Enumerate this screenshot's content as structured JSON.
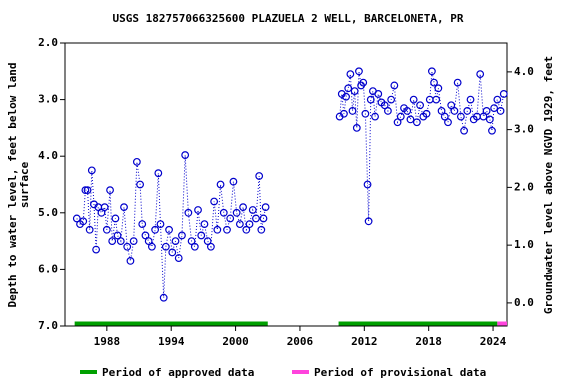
{
  "chart_data": {
    "type": "scatter",
    "title": "USGS 182757066325600 PLAZUELA 2 WELL, BARCELONETA, PR",
    "ylabel": [
      "Depth to water level, feet below land",
      "surface"
    ],
    "y2label": "Groundwater level above NGVD 1929, feet",
    "xlim": [
      1984.1,
      2025.3
    ],
    "xticks": [
      1988,
      1994,
      2000,
      2006,
      2012,
      2018,
      2024
    ],
    "ylim": [
      7.0,
      2.0
    ],
    "yticks": [
      {
        "value": 2,
        "label": "2.0"
      },
      {
        "value": 3,
        "label": "3.0"
      },
      {
        "value": 4,
        "label": "4.0"
      },
      {
        "value": 5,
        "label": "5.0"
      },
      {
        "value": 6,
        "label": "6.0"
      },
      {
        "value": 7,
        "label": "7.0"
      }
    ],
    "y2lim": [
      -0.4,
      4.5
    ],
    "y2ticks": [
      {
        "value": 0,
        "label": "0.0"
      },
      {
        "value": 1,
        "label": "1.0"
      },
      {
        "value": 2,
        "label": "2.0"
      },
      {
        "value": 3,
        "label": "3.0"
      },
      {
        "value": 4,
        "label": "4.0"
      }
    ],
    "series": [
      {
        "color": "#0000cc",
        "x": [
          1985.2,
          1985.5,
          1985.8,
          1986.0,
          1986.2,
          1986.4,
          1986.6,
          1986.8,
          1987.0,
          1987.2,
          1987.5,
          1987.8,
          1988.0,
          1988.3,
          1988.5,
          1988.8,
          1989.0,
          1989.3,
          1989.6,
          1989.9,
          1990.2,
          1990.5,
          1990.8,
          1991.1,
          1991.3,
          1991.6,
          1991.9,
          1992.2,
          1992.5,
          1992.8,
          1993.0,
          1993.3,
          1993.5,
          1993.8,
          1994.1,
          1994.4,
          1994.7,
          1995.0,
          1995.3,
          1995.6,
          1995.9,
          1996.2,
          1996.5,
          1996.8,
          1997.1,
          1997.4,
          1997.7,
          1998.0,
          1998.3,
          1998.6,
          1998.9,
          1999.2,
          1999.5,
          1999.8,
          2000.1,
          2000.4,
          2000.7,
          2001.0,
          2001.3,
          2001.6,
          2001.9,
          2002.2,
          2002.4,
          2002.6,
          2002.8,
          2006.0,
          2009.7,
          2009.9,
          2010.1,
          2010.3,
          2010.5,
          2010.7,
          2010.9,
          2011.1,
          2011.3,
          2011.5,
          2011.7,
          2011.9,
          2012.1,
          2012.3,
          2012.4,
          2012.6,
          2012.8,
          2013.0,
          2013.3,
          2013.6,
          2013.9,
          2014.2,
          2014.5,
          2014.8,
          2015.1,
          2015.4,
          2015.7,
          2016.0,
          2016.3,
          2016.6,
          2016.9,
          2017.2,
          2017.5,
          2017.8,
          2018.1,
          2018.3,
          2018.5,
          2018.7,
          2018.9,
          2019.2,
          2019.5,
          2019.8,
          2020.1,
          2020.4,
          2020.7,
          2021.0,
          2021.3,
          2021.6,
          2021.9,
          2022.2,
          2022.5,
          2022.8,
          2023.1,
          2023.4,
          2023.7,
          2023.9,
          2024.1,
          2024.4,
          2024.7,
          2025.0
        ],
        "values": [
          5.1,
          5.2,
          5.15,
          4.6,
          4.6,
          5.3,
          4.25,
          4.85,
          5.65,
          4.9,
          5.0,
          4.9,
          5.3,
          4.6,
          5.5,
          5.1,
          5.4,
          5.5,
          4.9,
          5.6,
          5.85,
          5.5,
          4.1,
          4.5,
          5.2,
          5.4,
          5.5,
          5.6,
          5.3,
          4.3,
          5.2,
          6.5,
          5.6,
          5.3,
          5.7,
          5.5,
          5.8,
          5.4,
          3.98,
          5.0,
          5.5,
          5.6,
          4.95,
          5.4,
          5.2,
          5.5,
          5.6,
          4.8,
          5.3,
          4.5,
          5.0,
          5.3,
          5.1,
          4.45,
          5.0,
          5.2,
          4.9,
          5.3,
          5.2,
          4.95,
          5.1,
          4.35,
          5.3,
          5.1,
          4.9,
          null,
          3.3,
          2.9,
          3.25,
          2.95,
          2.8,
          2.55,
          3.2,
          2.85,
          3.5,
          2.5,
          2.75,
          2.7,
          3.25,
          4.5,
          5.15,
          3.0,
          2.85,
          3.3,
          2.9,
          3.05,
          3.1,
          3.2,
          3.0,
          2.75,
          3.4,
          3.3,
          3.15,
          3.2,
          3.35,
          3.0,
          3.4,
          3.1,
          3.3,
          3.25,
          3.0,
          2.5,
          2.7,
          3.0,
          2.8,
          3.2,
          3.3,
          3.4,
          3.1,
          3.2,
          2.7,
          3.3,
          3.55,
          3.2,
          3.0,
          3.35,
          3.3,
          2.55,
          3.3,
          3.2,
          3.35,
          3.55,
          3.15,
          3.0,
          3.2,
          2.9
        ]
      }
    ],
    "periods": [
      {
        "name": "Period of approved data",
        "color": "#00a000",
        "ranges": [
          [
            1985.0,
            2003.0
          ],
          [
            2009.6,
            2024.4
          ]
        ]
      },
      {
        "name": "Period of provisional data",
        "color": "#ff44dd",
        "ranges": [
          [
            2024.4,
            2025.3
          ]
        ]
      }
    ]
  }
}
